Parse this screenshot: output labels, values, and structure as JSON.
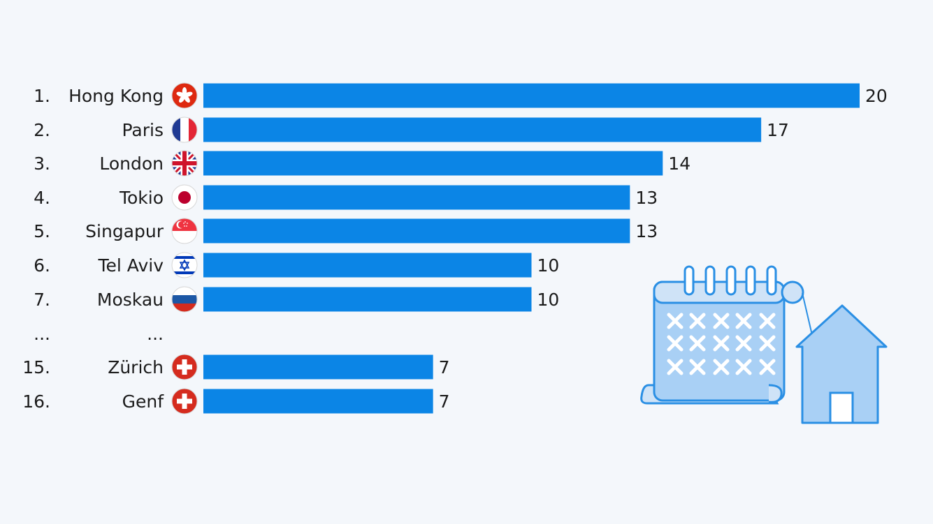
{
  "chart_data": {
    "type": "bar",
    "orientation": "horizontal",
    "bar_color": "#0b85e6",
    "value_max": 20,
    "rows": [
      {
        "rank": "1.",
        "city": "Hong Kong",
        "value": 20,
        "flag": "hong-kong-flag-icon"
      },
      {
        "rank": "2.",
        "city": "Paris",
        "value": 17,
        "flag": "france-flag-icon"
      },
      {
        "rank": "3.",
        "city": "London",
        "value": 14,
        "flag": "uk-flag-icon"
      },
      {
        "rank": "4.",
        "city": "Tokio",
        "value": 13,
        "flag": "japan-flag-icon"
      },
      {
        "rank": "5.",
        "city": "Singapur",
        "value": 13,
        "flag": "singapore-flag-icon"
      },
      {
        "rank": "6.",
        "city": "Tel Aviv",
        "value": 10,
        "flag": "israel-flag-icon"
      },
      {
        "rank": "7.",
        "city": "Moskau",
        "value": 10,
        "flag": "russia-flag-icon"
      },
      {
        "rank": "15.",
        "city": "Zürich",
        "value": 7,
        "flag": "switzerland-flag-icon"
      },
      {
        "rank": "16.",
        "city": "Genf",
        "value": 7,
        "flag": "switzerland-flag-icon"
      }
    ],
    "gap_marker": {
      "rank": "...",
      "city": "..."
    },
    "illustration": "calendar-and-house-icon"
  }
}
